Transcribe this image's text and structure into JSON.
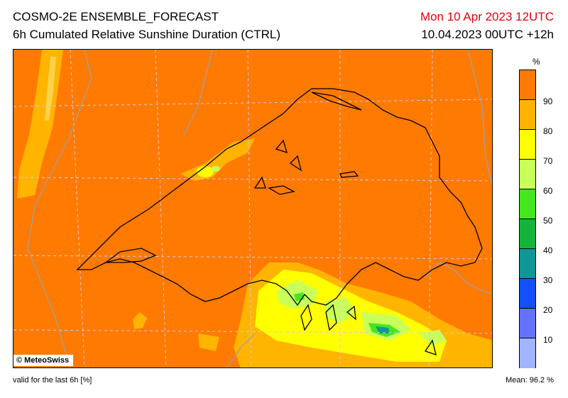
{
  "header": {
    "title_line1": "COSMO-2E ENSEMBLE_FORECAST",
    "title_line2": "6h Cumulated Relative Sunshine Duration (CTRL)",
    "valid_time": "Mon 10 Apr 2023 12UTC",
    "run_info": "10.04.2023 00UTC +12h"
  },
  "map": {
    "copyright": "© MeteoSwiss",
    "background_color": "#ff7a00"
  },
  "legend": {
    "unit": "%",
    "ticks": [
      "90",
      "80",
      "70",
      "60",
      "50",
      "40",
      "30",
      "20",
      "10"
    ],
    "colors": [
      "#ff7a00",
      "#ffb400",
      "#ffff00",
      "#c8ff5a",
      "#46e61e",
      "#14b43c",
      "#0f9696",
      "#1450ff",
      "#6473ff",
      "#a0b4ff"
    ]
  },
  "footer": {
    "valid_note": "valid for the last 6h [%]",
    "mean_label": "Mean:",
    "mean_value": "96.2 %"
  }
}
